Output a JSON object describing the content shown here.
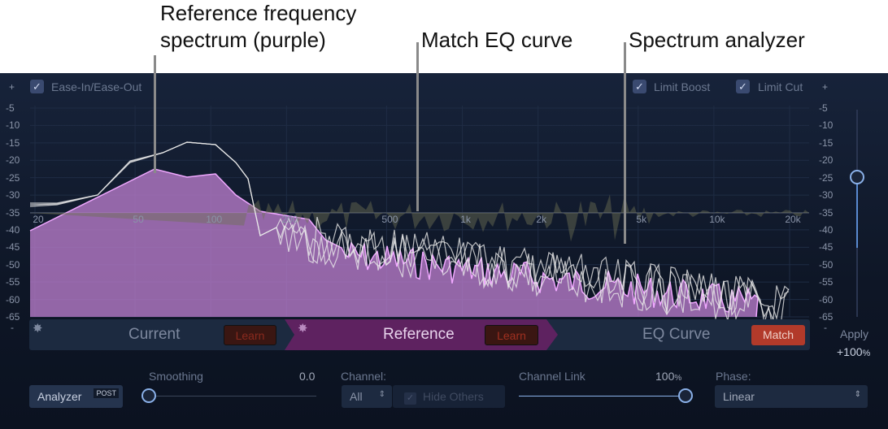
{
  "callouts": {
    "reference_line1": "Reference frequency",
    "reference_line2": "spectrum (purple)",
    "match_eq": "Match EQ curve",
    "analyzer": "Spectrum analyzer"
  },
  "options": {
    "ease": "Ease-In/Ease-Out",
    "ease_checked": true,
    "limit_boost": "Limit Boost",
    "limit_boost_checked": true,
    "limit_cut": "Limit Cut",
    "limit_cut_checked": true
  },
  "scale": {
    "plus": "+",
    "minus": "-",
    "db_labels": [
      "-5",
      "-10",
      "-15",
      "-20",
      "-25",
      "-30",
      "-35",
      "-40",
      "-45",
      "-50",
      "-55",
      "-60",
      "-65"
    ],
    "freq_labels": [
      "20",
      "50",
      "100",
      "200",
      "500",
      "1k",
      "2k",
      "5k",
      "10k",
      "20k"
    ]
  },
  "colors": {
    "reference": "#c77fd6",
    "match_button": "#b23a2a",
    "reference_tab": "#5e2260"
  },
  "strip": {
    "current": "Current",
    "reference": "Reference",
    "eq_curve": "EQ Curve",
    "learn": "Learn",
    "match": "Match"
  },
  "apply": {
    "label": "Apply",
    "value": "+100",
    "unit": "%",
    "level_percent": 100
  },
  "bottom": {
    "analyzer": "Analyzer",
    "post": "POST",
    "smoothing_label": "Smoothing",
    "smoothing_value": "0.0",
    "channel_label": "Channel:",
    "channel_value": "All",
    "hide_others": "Hide Others",
    "channel_link_label": "Channel Link",
    "channel_link_value": "100",
    "channel_link_unit": "%",
    "phase_label": "Phase:",
    "phase_value": "Linear"
  }
}
